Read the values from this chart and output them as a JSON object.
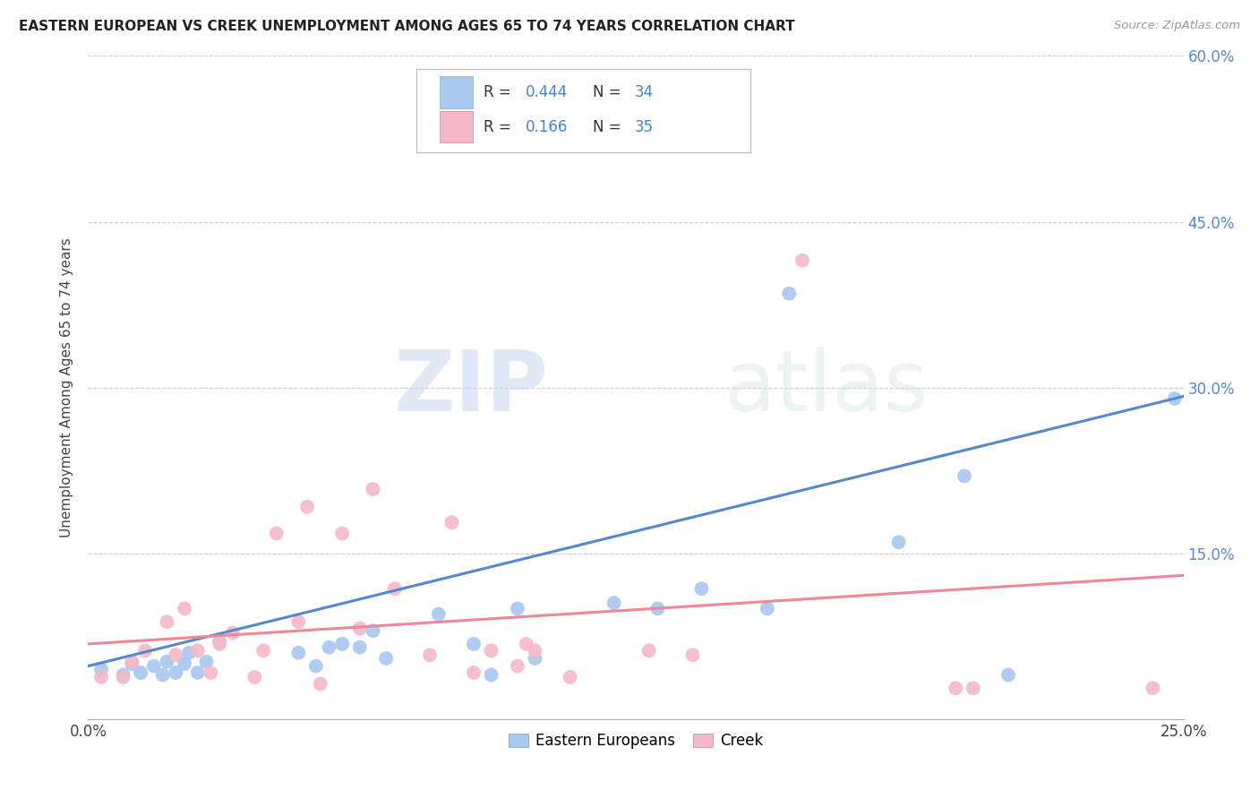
{
  "title": "EASTERN EUROPEAN VS CREEK UNEMPLOYMENT AMONG AGES 65 TO 74 YEARS CORRELATION CHART",
  "source": "Source: ZipAtlas.com",
  "ylabel": "Unemployment Among Ages 65 to 74 years",
  "xlim": [
    0.0,
    0.25
  ],
  "ylim": [
    0.0,
    0.6
  ],
  "xticks": [
    0.0,
    0.05,
    0.1,
    0.15,
    0.2,
    0.25
  ],
  "xticklabels": [
    "0.0%",
    "",
    "",
    "",
    "",
    "25.0%"
  ],
  "yticks": [
    0.0,
    0.15,
    0.3,
    0.45,
    0.6
  ],
  "yticklabels_right": [
    "",
    "15.0%",
    "30.0%",
    "45.0%",
    "60.0%"
  ],
  "blue_color": "#a8c8f0",
  "pink_color": "#f5b8c8",
  "line_blue": "#5588cc",
  "line_pink": "#ee8899",
  "watermark_zip": "ZIP",
  "watermark_atlas": "atlas",
  "blue_points_x": [
    0.003,
    0.008,
    0.01,
    0.012,
    0.015,
    0.017,
    0.018,
    0.02,
    0.022,
    0.023,
    0.025,
    0.027,
    0.03,
    0.048,
    0.052,
    0.055,
    0.058,
    0.062,
    0.065,
    0.068,
    0.08,
    0.088,
    0.092,
    0.098,
    0.102,
    0.12,
    0.13,
    0.14,
    0.155,
    0.16,
    0.185,
    0.2,
    0.21,
    0.248
  ],
  "blue_points_y": [
    0.045,
    0.04,
    0.05,
    0.042,
    0.048,
    0.04,
    0.052,
    0.042,
    0.05,
    0.06,
    0.042,
    0.052,
    0.07,
    0.06,
    0.048,
    0.065,
    0.068,
    0.065,
    0.08,
    0.055,
    0.095,
    0.068,
    0.04,
    0.1,
    0.055,
    0.105,
    0.1,
    0.118,
    0.1,
    0.385,
    0.16,
    0.22,
    0.04,
    0.29
  ],
  "pink_points_x": [
    0.003,
    0.008,
    0.01,
    0.013,
    0.018,
    0.02,
    0.022,
    0.025,
    0.028,
    0.03,
    0.033,
    0.038,
    0.04,
    0.043,
    0.048,
    0.05,
    0.053,
    0.058,
    0.062,
    0.065,
    0.07,
    0.078,
    0.083,
    0.088,
    0.092,
    0.098,
    0.1,
    0.102,
    0.11,
    0.128,
    0.138,
    0.163,
    0.198,
    0.202,
    0.243
  ],
  "pink_points_y": [
    0.038,
    0.038,
    0.052,
    0.062,
    0.088,
    0.058,
    0.1,
    0.062,
    0.042,
    0.068,
    0.078,
    0.038,
    0.062,
    0.168,
    0.088,
    0.192,
    0.032,
    0.168,
    0.082,
    0.208,
    0.118,
    0.058,
    0.178,
    0.042,
    0.062,
    0.048,
    0.068,
    0.062,
    0.038,
    0.062,
    0.058,
    0.415,
    0.028,
    0.028,
    0.028
  ],
  "blue_line_x": [
    0.0,
    0.25
  ],
  "blue_line_y": [
    0.048,
    0.292
  ],
  "pink_line_x": [
    0.0,
    0.25
  ],
  "pink_line_y": [
    0.068,
    0.13
  ]
}
